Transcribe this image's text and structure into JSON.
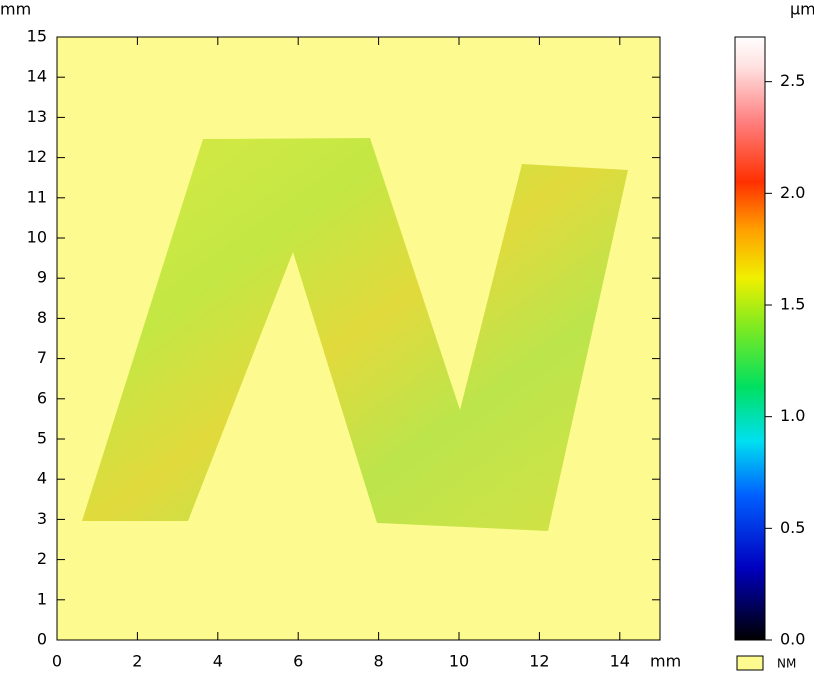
{
  "chart_data": {
    "type": "heatmap",
    "x_label": "mm",
    "y_label": "mm",
    "xlim": [
      0,
      15
    ],
    "ylim": [
      0,
      15
    ],
    "xticks": [
      0,
      2,
      4,
      6,
      8,
      10,
      12,
      14
    ],
    "yticks": [
      0,
      1,
      2,
      3,
      4,
      5,
      6,
      7,
      8,
      9,
      10,
      11,
      12,
      13,
      14,
      15
    ],
    "background": "#fdfb8f",
    "colorbar": {
      "label": "µm",
      "lim": [
        0,
        2.7
      ],
      "ticks": [
        {
          "value": 0,
          "label": "0.0"
        },
        0.5,
        {
          "value": 1,
          "label": "1.0"
        },
        1.5,
        {
          "value": 2,
          "label": "2.0"
        },
        2.5
      ]
    },
    "legend": {
      "label": "NM",
      "color": "#fdfb8f"
    }
  }
}
